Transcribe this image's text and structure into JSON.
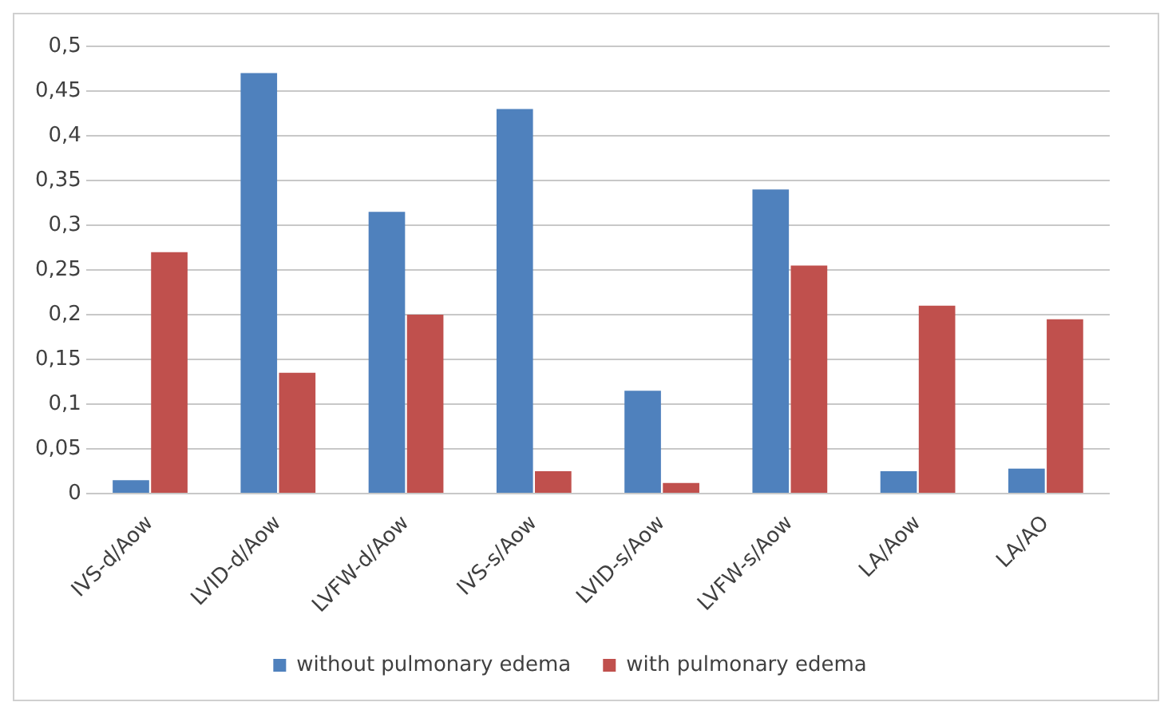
{
  "chart_data": {
    "type": "bar",
    "categories": [
      "IVS-d/Aow",
      "LVID-d/Aow",
      "LVFW-d/Aow",
      "IVS-s/Aow",
      "LVID-s/Aow",
      "LVFW-s/Aow",
      "LA/Aow",
      "LA/AO"
    ],
    "series": [
      {
        "name": "without pulmonary edema",
        "color": "#4f81bd",
        "values": [
          0.015,
          0.47,
          0.315,
          0.43,
          0.115,
          0.34,
          0.025,
          0.028
        ]
      },
      {
        "name": "with pulmonary edema",
        "color": "#c0504d",
        "values": [
          0.27,
          0.135,
          0.2,
          0.025,
          0.012,
          0.255,
          0.21,
          0.195
        ]
      }
    ],
    "ylim": [
      0,
      0.5
    ],
    "yticks": [
      {
        "value": 0,
        "label": "0"
      },
      {
        "value": 0.05,
        "label": "0,05"
      },
      {
        "value": 0.1,
        "label": "0,1"
      },
      {
        "value": 0.15,
        "label": "0,15"
      },
      {
        "value": 0.2,
        "label": "0,2"
      },
      {
        "value": 0.25,
        "label": "0,25"
      },
      {
        "value": 0.3,
        "label": "0,3"
      },
      {
        "value": 0.35,
        "label": "0,35"
      },
      {
        "value": 0.4,
        "label": "0,4"
      },
      {
        "value": 0.45,
        "label": "0,45"
      },
      {
        "value": 0.5,
        "label": "0,5"
      }
    ],
    "grid": "y",
    "legend": "bottom"
  }
}
